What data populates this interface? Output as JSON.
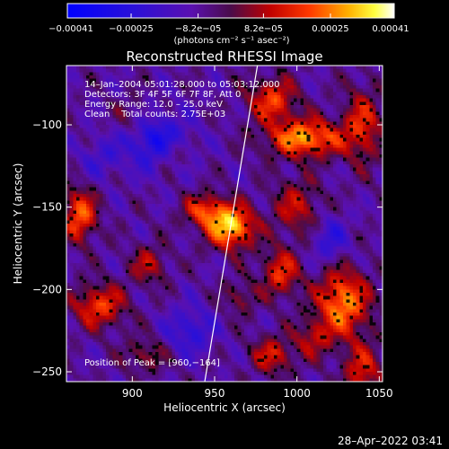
{
  "chart_data": {
    "type": "heatmap",
    "title": "Reconstructed RHESSI Image",
    "xlabel": "Heliocentric X (arcsec)",
    "ylabel": "Heliocentric Y (arcsec)",
    "xlim": [
      860,
      1052
    ],
    "ylim": [
      -256,
      -64
    ],
    "x_ticks": [
      900,
      950,
      1000,
      1050
    ],
    "y_ticks": [
      -100,
      -150,
      -200,
      -250
    ],
    "x_tick_labels": [
      "900",
      "950",
      "1000",
      "1050"
    ],
    "y_tick_labels": [
      "−100",
      "−150",
      "−200",
      "−250"
    ],
    "colorbar": {
      "label": "(photons cm⁻² s⁻¹ asec⁻²)",
      "min": -0.00041,
      "max": 0.00041,
      "ticks": [
        -0.00041,
        -0.00025,
        -8.2e-05,
        8.2e-05,
        0.00025,
        0.00041
      ],
      "tick_labels": [
        "−0.00041",
        "−0.00025",
        "−8.2e−05",
        "8.2e−05",
        "0.00025",
        "0.00041"
      ],
      "colormap": "rhessi blue-purple-red-yellow-white"
    },
    "annotations": [
      "14–Jan–2004 05:01:28.000 to 05:03:12.000",
      "Detectors: 3F 4F 5F 6F 7F 8F, Att 0",
      "Energy Range: 12.0 – 25.0 keV",
      "Clean    Total counts: 2.75E+03"
    ],
    "peak": {
      "label": "Position of Peak = [960,−164]",
      "x": 960,
      "y": -164
    },
    "limb_line": {
      "x_top": 976,
      "y_top": -64,
      "x_bottom": 944,
      "y_bottom": -256
    },
    "sources": [
      {
        "x": 960,
        "y": -162,
        "peak": 0.00041,
        "sx": 10,
        "sy": 9
      },
      {
        "x": 944,
        "y": -152,
        "peak": 0.00024,
        "sx": 9,
        "sy": 7
      },
      {
        "x": 1005,
        "y": -108,
        "peak": 0.00036,
        "sx": 16,
        "sy": 8
      },
      {
        "x": 985,
        "y": -85,
        "peak": 0.00026,
        "sx": 10,
        "sy": 9
      },
      {
        "x": 1028,
        "y": -208,
        "peak": 0.00035,
        "sx": 11,
        "sy": 14
      },
      {
        "x": 1040,
        "y": -100,
        "peak": 0.00022,
        "sx": 8,
        "sy": 16
      },
      {
        "x": 1000,
        "y": -150,
        "peak": 0.00018,
        "sx": 10,
        "sy": 12
      },
      {
        "x": 990,
        "y": -190,
        "peak": 0.00024,
        "sx": 8,
        "sy": 10
      },
      {
        "x": 1040,
        "y": -250,
        "peak": 0.00022,
        "sx": 8,
        "sy": 12
      },
      {
        "x": 868,
        "y": -155,
        "peak": 0.0003,
        "sx": 7,
        "sy": 11
      },
      {
        "x": 880,
        "y": -210,
        "peak": 0.00026,
        "sx": 11,
        "sy": 9
      },
      {
        "x": 910,
        "y": -185,
        "peak": 0.00017,
        "sx": 8,
        "sy": 8
      },
      {
        "x": 908,
        "y": -240,
        "peak": 0.00014,
        "sx": 9,
        "sy": 7
      },
      {
        "x": 925,
        "y": -118,
        "peak": 0.00012,
        "sx": 7,
        "sy": 7
      },
      {
        "x": 985,
        "y": -240,
        "peak": 0.0002,
        "sx": 9,
        "sy": 8
      },
      {
        "x": 1010,
        "y": -230,
        "peak": 0.00016,
        "sx": 8,
        "sy": 8
      },
      {
        "x": 900,
        "y": -95,
        "peak": 0.0001,
        "sx": 8,
        "sy": 8
      },
      {
        "x": 965,
        "y": -205,
        "peak": 0.00013,
        "sx": 7,
        "sy": 7
      },
      {
        "x": 915,
        "y": -110,
        "peak": -0.00022,
        "sx": 14,
        "sy": 12
      },
      {
        "x": 935,
        "y": -225,
        "peak": -0.00016,
        "sx": 10,
        "sy": 10
      },
      {
        "x": 1020,
        "y": -170,
        "peak": -0.00015,
        "sx": 8,
        "sy": 10
      },
      {
        "x": 880,
        "y": -120,
        "peak": -0.0001,
        "sx": 9,
        "sy": 9
      }
    ]
  },
  "footer": {
    "timestamp": "28–Apr–2022 03:41"
  }
}
